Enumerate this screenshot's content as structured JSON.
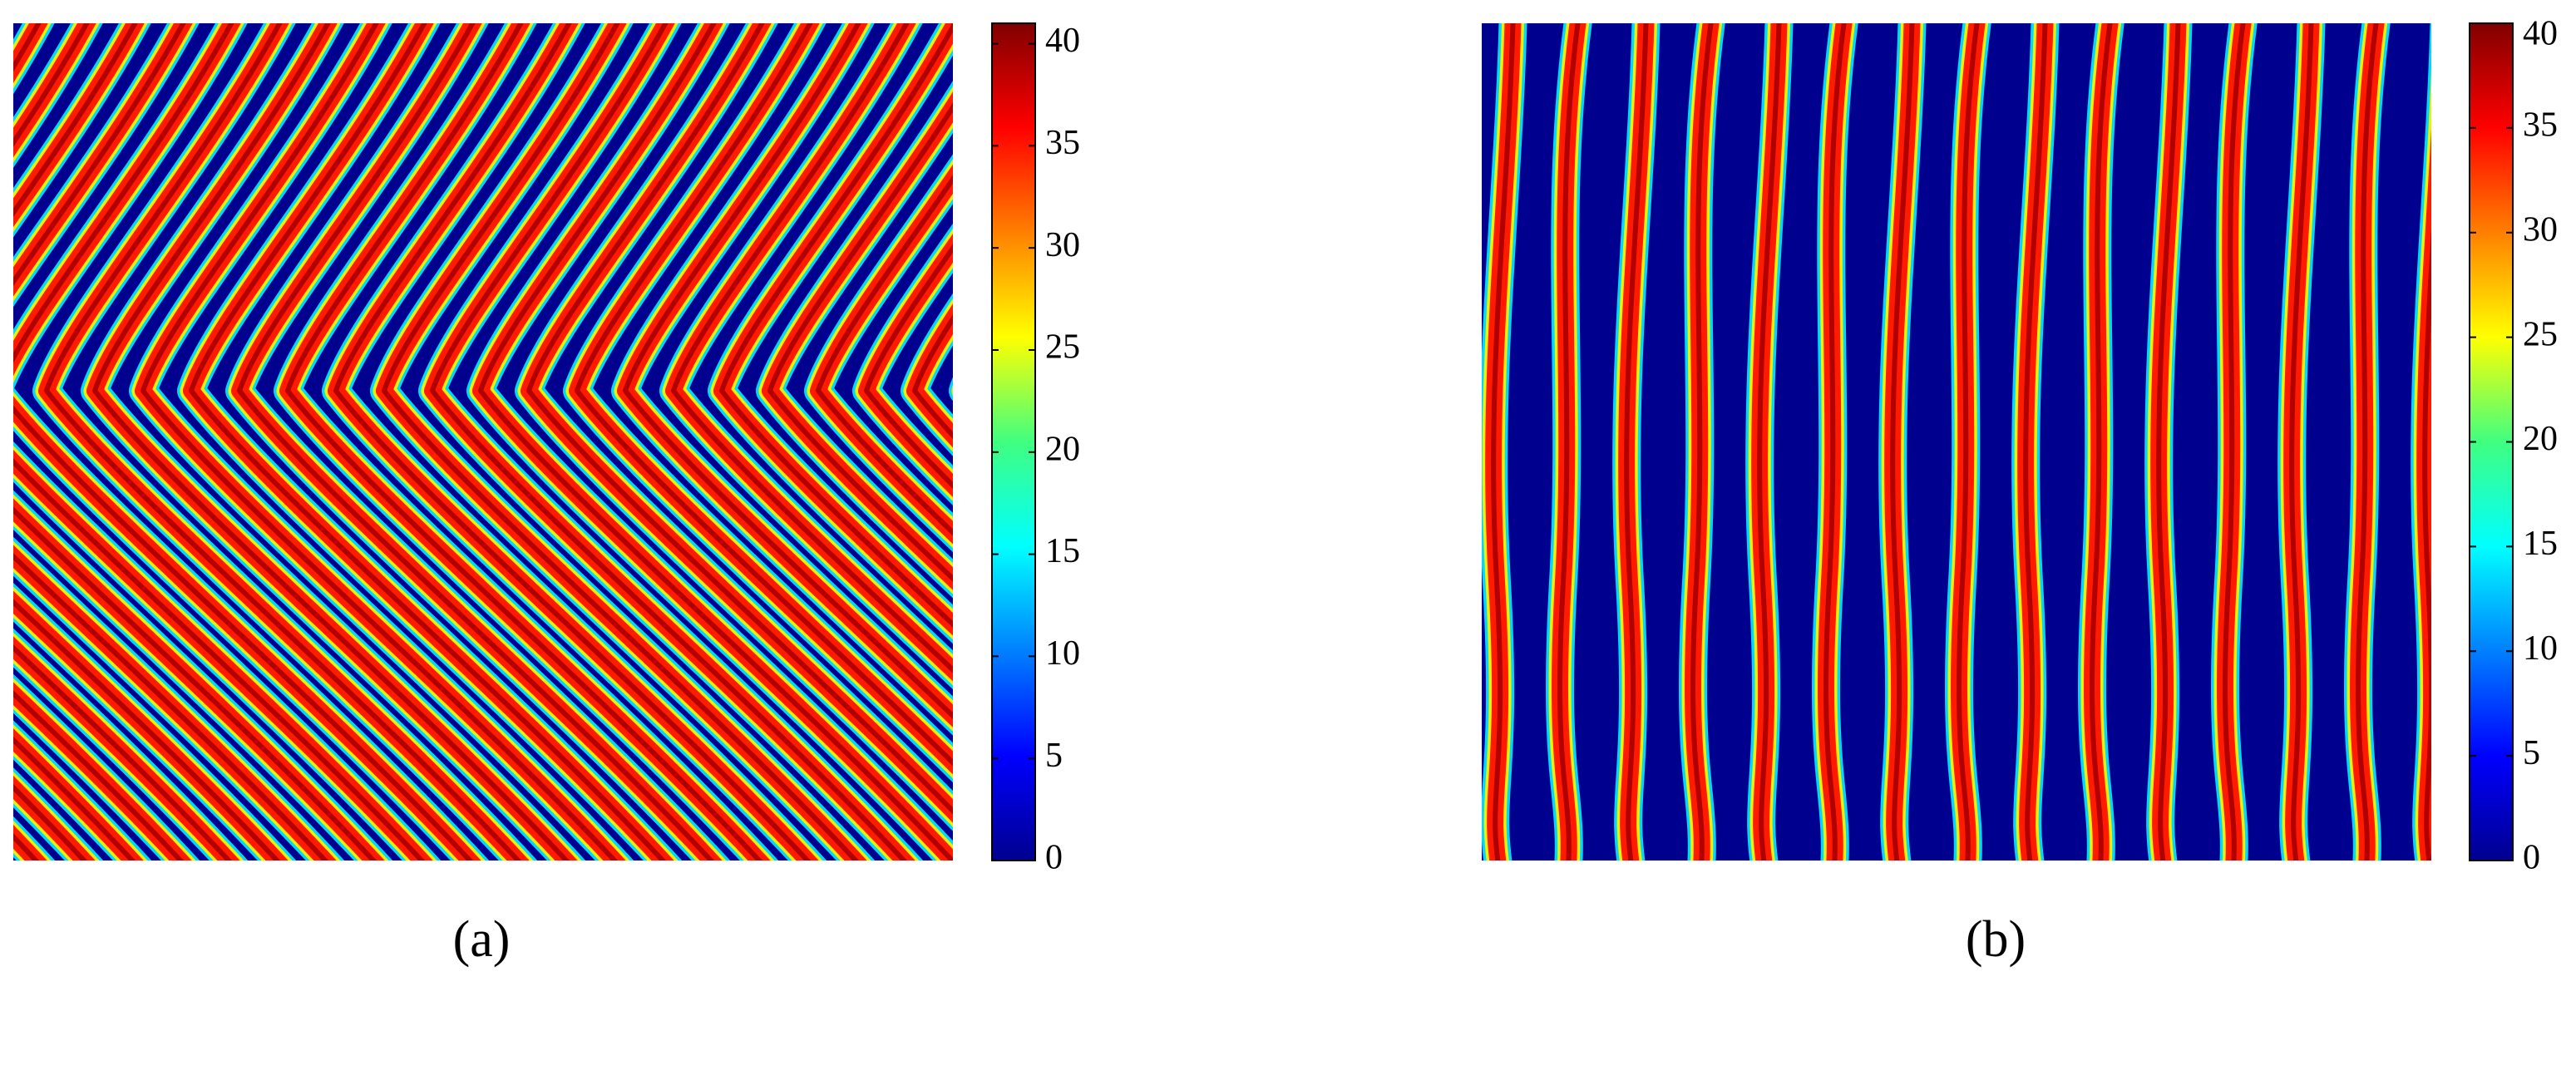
{
  "chart_data": [
    {
      "type": "heatmap",
      "label": "(a)",
      "colormap": "jet",
      "clim": [
        0,
        41
      ],
      "colorbar_ticks": [
        0,
        5,
        10,
        15,
        20,
        25,
        30,
        35,
        40
      ]
    },
    {
      "type": "heatmap",
      "label": "(b)",
      "colormap": "jet",
      "clim": [
        0,
        40
      ],
      "colorbar_ticks": [
        0,
        5,
        10,
        15,
        20,
        25,
        30,
        35,
        40
      ]
    }
  ]
}
